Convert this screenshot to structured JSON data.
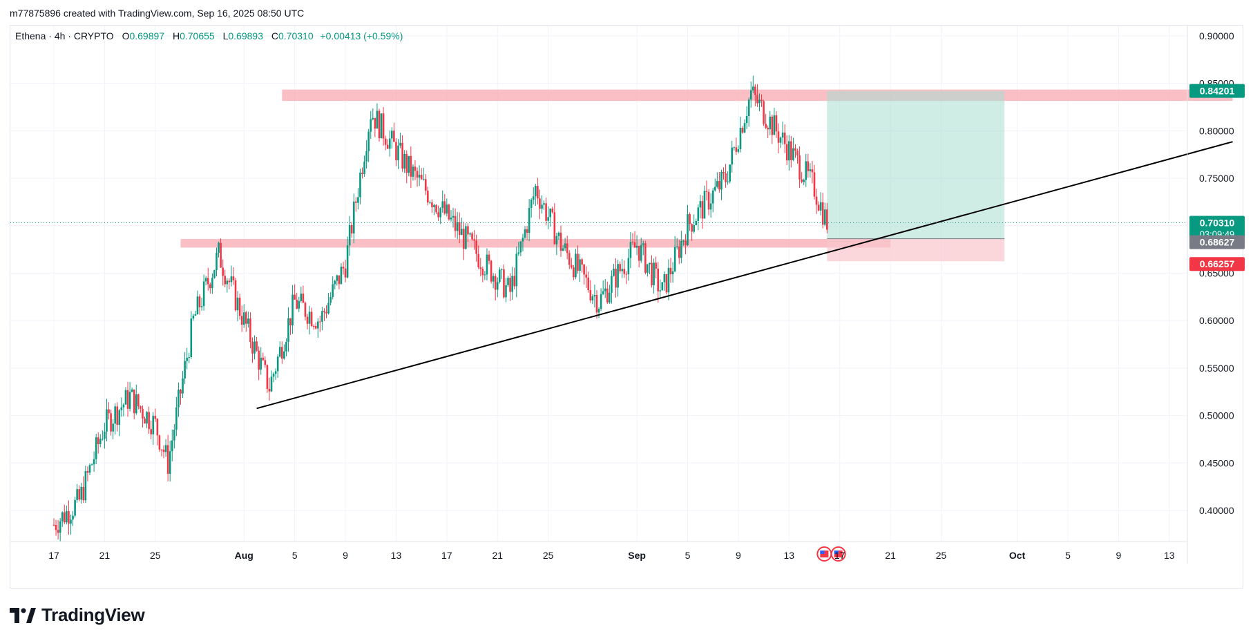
{
  "header": {
    "caption": "m77875896 created with TradingView.com, Sep 16, 2025 08:50 UTC"
  },
  "legend": {
    "symbol": "Ethena · 4h · CRYPTO",
    "o_label": "O",
    "o_value": "0.69897",
    "h_label": "H",
    "h_value": "0.70655",
    "l_label": "L",
    "l_value": "0.69893",
    "c_label": "C",
    "c_value": "0.70310",
    "change": "+0.00413 (+0.59%)"
  },
  "brand": {
    "name": "TradingView"
  },
  "colors": {
    "up": "#089981",
    "down": "#f23645",
    "zone": "#f7a9b1",
    "profit": "#a8dccf",
    "loss": "#f9c6cc",
    "grid": "#f0f3fa",
    "trendline": "#000000"
  },
  "chart_data": {
    "type": "candlestick",
    "symbol": "Ethena",
    "timeframe": "4h",
    "ylim": [
      0.38,
      0.915
    ],
    "y_ticks": [
      "0.90000",
      "0.85000",
      "0.80000",
      "0.75000",
      "0.70000",
      "0.65000",
      "0.60000",
      "0.55000",
      "0.50000",
      "0.45000",
      "0.40000"
    ],
    "x_ticks": [
      {
        "label": "17",
        "bold": false
      },
      {
        "label": "21",
        "bold": false
      },
      {
        "label": "25",
        "bold": false
      },
      {
        "label": "Aug",
        "bold": true
      },
      {
        "label": "5",
        "bold": false
      },
      {
        "label": "9",
        "bold": false
      },
      {
        "label": "13",
        "bold": false
      },
      {
        "label": "17",
        "bold": false
      },
      {
        "label": "21",
        "bold": false
      },
      {
        "label": "25",
        "bold": false
      },
      {
        "label": "Sep",
        "bold": true
      },
      {
        "label": "5",
        "bold": false
      },
      {
        "label": "9",
        "bold": false
      },
      {
        "label": "13",
        "bold": false
      },
      {
        "label": "17",
        "bold": false
      },
      {
        "label": "21",
        "bold": false
      },
      {
        "label": "25",
        "bold": false
      },
      {
        "label": "Oct",
        "bold": true
      },
      {
        "label": "5",
        "bold": false
      },
      {
        "label": "9",
        "bold": false
      },
      {
        "label": "13",
        "bold": false
      }
    ],
    "price_path": [
      [
        "Jul 17",
        0.385
      ],
      [
        "Jul 19",
        0.41
      ],
      [
        "Jul 21",
        0.49
      ],
      [
        "Jul 23",
        0.52
      ],
      [
        "Jul 25",
        0.49
      ],
      [
        "Jul 26",
        0.45
      ],
      [
        "Jul 28",
        0.6
      ],
      [
        "Jul 30",
        0.67
      ],
      [
        "Aug 1",
        0.6
      ],
      [
        "Aug 3",
        0.53
      ],
      [
        "Aug 5",
        0.62
      ],
      [
        "Aug 7",
        0.6
      ],
      [
        "Aug 9",
        0.66
      ],
      [
        "Aug 11",
        0.82
      ],
      [
        "Aug 14",
        0.76
      ],
      [
        "Aug 17",
        0.71
      ],
      [
        "Aug 20",
        0.66
      ],
      [
        "Aug 22",
        0.63
      ],
      [
        "Aug 24",
        0.74
      ],
      [
        "Aug 26",
        0.68
      ],
      [
        "Aug 29",
        0.62
      ],
      [
        "Sep 1",
        0.68
      ],
      [
        "Sep 3",
        0.63
      ],
      [
        "Sep 5",
        0.7
      ],
      [
        "Sep 8",
        0.75
      ],
      [
        "Sep 10",
        0.84
      ],
      [
        "Sep 12",
        0.8
      ],
      [
        "Sep 15",
        0.74
      ],
      [
        "Sep 16",
        0.703
      ]
    ],
    "last_price": "0.70310",
    "countdown": "03:09:49",
    "position": {
      "type": "long",
      "target": "0.84201",
      "entry": "0.68627",
      "stop": "0.66257",
      "start": "Sep 16",
      "end": "Sep 30"
    },
    "resistance_zone": {
      "low": 0.8315,
      "high": 0.8435,
      "from": "Aug 4",
      "to": "Oct 18"
    },
    "support_zone": {
      "low": 0.677,
      "high": 0.686,
      "from": "Jul 27",
      "to": "Sep 21"
    },
    "trendline": {
      "from": [
        "Aug 2",
        0.5075
      ],
      "to": [
        "Oct 18",
        0.7885
      ]
    },
    "events": [
      {
        "date": "Sep 16",
        "icon": "us-flag-icon"
      },
      {
        "date": "Sep 17",
        "icon": "us-flag-icon"
      }
    ]
  }
}
